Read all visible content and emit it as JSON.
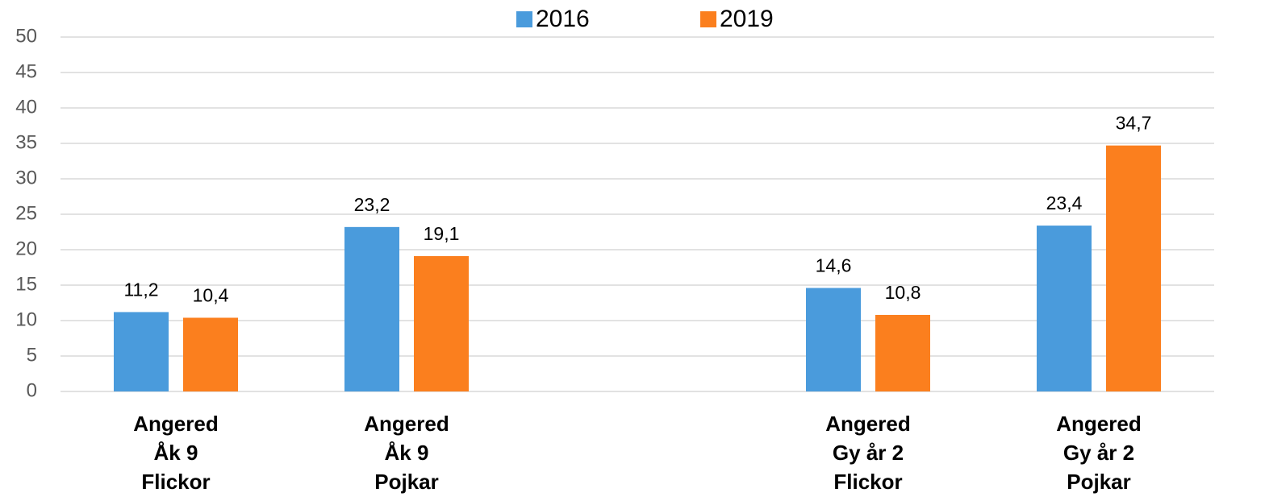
{
  "chart_data": {
    "type": "bar",
    "categories": [
      "Angered\nÅk 9\nFlickor",
      "Angered\nÅk 9\nPojkar",
      null,
      "Angered\nGy år 2\nFlickor",
      "Angered\nGy år 2\nPojkar"
    ],
    "series": [
      {
        "name": "2016",
        "color": "#4a9bdc",
        "values": [
          11.2,
          23.2,
          null,
          14.6,
          23.4
        ],
        "value_labels": [
          "11,2",
          "23,2",
          null,
          "14,6",
          "23,4"
        ]
      },
      {
        "name": "2019",
        "color": "#fb7f1e",
        "values": [
          10.4,
          19.1,
          null,
          10.8,
          34.7
        ],
        "value_labels": [
          "10,4",
          "19,1",
          null,
          "10,8",
          "34,7"
        ]
      }
    ],
    "ylim": [
      0,
      50
    ],
    "yticks": [
      0,
      5,
      10,
      15,
      20,
      25,
      30,
      35,
      40,
      45,
      50
    ],
    "grid": true,
    "legend": "top"
  }
}
